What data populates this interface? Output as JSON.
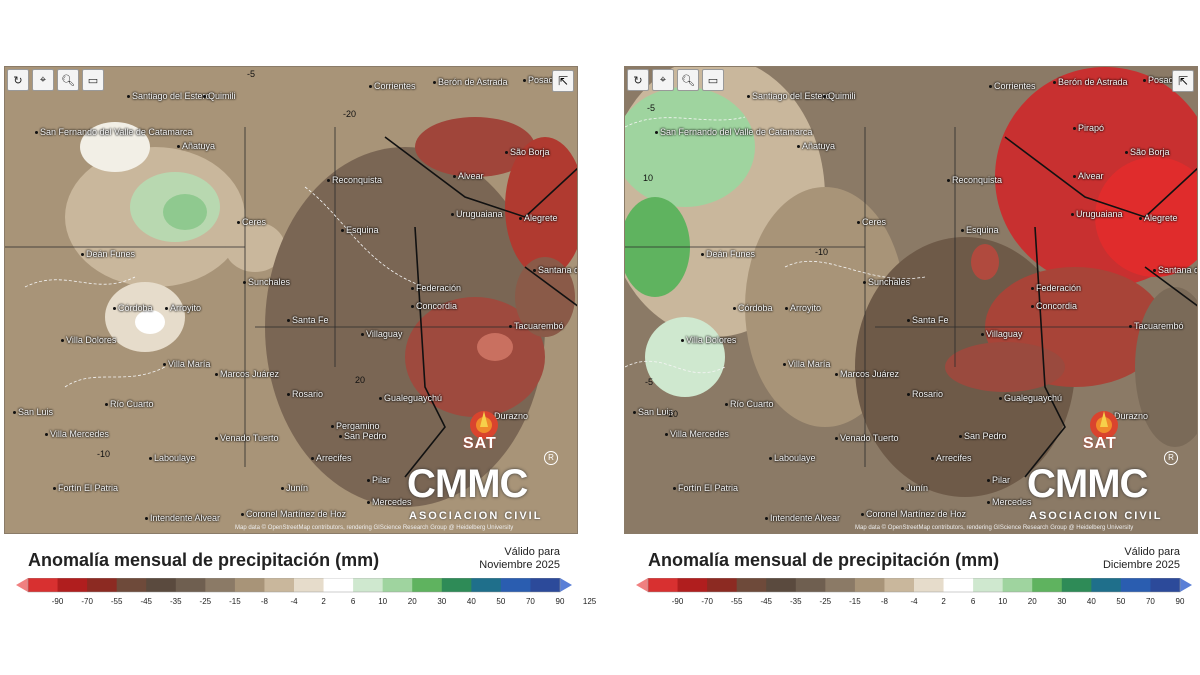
{
  "panels": [
    {
      "id": "nov",
      "title": "Anomalía mensual de precipitación (mm)",
      "valid_label": "Válido para",
      "valid_month": "Noviembre 2025",
      "attribution": "Map data © OpenStreetMap contributors, rendering GIScience Research Group @ Heidelberg University",
      "cities": [
        {
          "name": "Santiago del Estero"
        },
        {
          "name": "Quimili"
        },
        {
          "name": "San Fernando del Valle de Catamarca"
        },
        {
          "name": "Añatuya"
        },
        {
          "name": "Esquina"
        },
        {
          "name": "Ceres"
        },
        {
          "name": "Deán Funes"
        },
        {
          "name": "Sunchales"
        },
        {
          "name": "Córdoba"
        },
        {
          "name": "Arroyito"
        },
        {
          "name": "Villa Dolores"
        },
        {
          "name": "Villa María"
        },
        {
          "name": "Marcos Juárez"
        },
        {
          "name": "Río Cuarto"
        },
        {
          "name": "San Luis"
        },
        {
          "name": "Villa Mercedes"
        },
        {
          "name": "Venado Tuerto"
        },
        {
          "name": "Laboulaye"
        },
        {
          "name": "Fortín El Patria"
        },
        {
          "name": "Intendente Alvear"
        },
        {
          "name": "Coronel Martínez de Hoz"
        },
        {
          "name": "Reconquista"
        },
        {
          "name": "Santa Fe"
        },
        {
          "name": "Rosario"
        },
        {
          "name": "Pergamino"
        },
        {
          "name": "San Pedro"
        },
        {
          "name": "Arrecifes"
        },
        {
          "name": "Junín"
        },
        {
          "name": "Mercedes"
        },
        {
          "name": "Pilar"
        },
        {
          "name": "Corrientes"
        },
        {
          "name": "Berón de Astrada"
        },
        {
          "name": "Posadas"
        },
        {
          "name": "Alvear"
        },
        {
          "name": "São Borja"
        },
        {
          "name": "Uruguaiana"
        },
        {
          "name": "Alegrete"
        },
        {
          "name": "Federación"
        },
        {
          "name": "Concordia"
        },
        {
          "name": "Villaguay"
        },
        {
          "name": "Gualeguaychú"
        },
        {
          "name": "Santana do Livramento"
        },
        {
          "name": "Tacuarembó"
        },
        {
          "name": "Durazno"
        },
        {
          "name": "Pirapó"
        }
      ]
    },
    {
      "id": "dic",
      "title": "Anomalía mensual de precipitación (mm)",
      "valid_label": "Válido para",
      "valid_month": "Diciembre 2025",
      "attribution": "Map data © OpenStreetMap contributors, rendering GIScience Research Group @ Heidelberg University"
    }
  ],
  "logos": {
    "sat": "SAT",
    "cmmc": "CMMC",
    "cmmc_sub": "ASOCIACION CIVIL",
    "registered": "R"
  },
  "toolbar": {
    "refresh_icon": "refresh-icon",
    "locate_icon": "location-pin-icon",
    "zoom_icon": "zoom-icon",
    "scale_icon": "scale-icon",
    "share_icon": "share-icon"
  },
  "contour_labels": [
    "-20",
    "-10",
    "-5",
    "10",
    "20"
  ],
  "legend": {
    "ticks": [
      "-90",
      "-70",
      "-55",
      "-45",
      "-35",
      "-25",
      "-15",
      "-8",
      "-4",
      "2",
      "6",
      "10",
      "20",
      "30",
      "40",
      "50",
      "70",
      "90",
      "125"
    ],
    "colors": [
      "#f08080",
      "#d83030",
      "#b01e1e",
      "#8c2a22",
      "#6e4a3a",
      "#5a4a3e",
      "#6f5f50",
      "#8b7a66",
      "#a89478",
      "#c9b79c",
      "#e6dccb",
      "#ffffff",
      "#cfe8cf",
      "#9fd49f",
      "#5fb35f",
      "#2e8b57",
      "#1f6f8b",
      "#2a5db0",
      "#2c4a9a",
      "#5a7fd6"
    ]
  }
}
